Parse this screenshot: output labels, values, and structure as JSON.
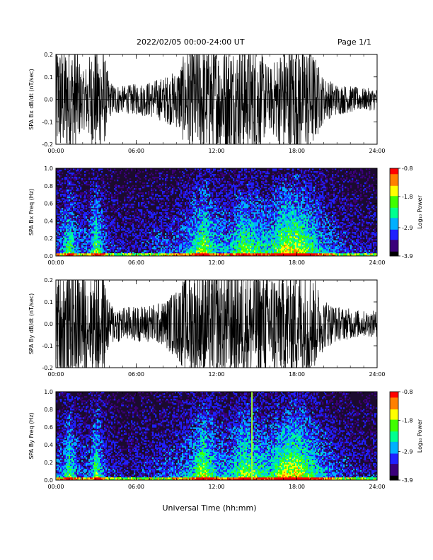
{
  "header": {
    "title": "2022/02/05  00:00-24:00 UT",
    "page": "Page 1/1"
  },
  "colors": {
    "trace": "#000000",
    "spectrogram_background": "#1b0b2e",
    "colormap": [
      "#000000",
      "#3a007a",
      "#2020ff",
      "#00b0ff",
      "#00ff90",
      "#40ff00",
      "#ffff00",
      "#ff8000",
      "#ff0000"
    ]
  },
  "chart_data": [
    {
      "id": "bx-waveform",
      "type": "line",
      "title": "",
      "ylabel": "SPA Bx dB/dt (nT/sec)",
      "xlabel": "",
      "xlim": [
        0,
        24
      ],
      "ylim": [
        -0.2,
        0.2
      ],
      "x_ticks": [
        "00:00",
        "06:00",
        "12:00",
        "18:00",
        "24:00"
      ],
      "y_ticks": [
        "-0.2",
        "-0.1",
        "0.0",
        "0.1",
        "0.2"
      ],
      "grid": false,
      "envelope": {
        "hours": [
          0,
          0.5,
          1,
          1.5,
          2,
          2.5,
          3,
          3.5,
          4,
          5,
          6,
          7,
          8,
          9,
          10,
          11,
          12,
          13,
          14,
          15,
          16,
          17,
          18,
          19,
          20,
          21,
          22,
          23,
          24
        ],
        "amplitude": [
          0.25,
          0.25,
          0.25,
          0.25,
          0.12,
          0.2,
          0.25,
          0.25,
          0.08,
          0.06,
          0.07,
          0.08,
          0.1,
          0.13,
          0.25,
          0.25,
          0.25,
          0.25,
          0.25,
          0.25,
          0.14,
          0.25,
          0.25,
          0.25,
          0.1,
          0.07,
          0.06,
          0.05,
          0.05
        ]
      }
    },
    {
      "id": "bx-spectrogram",
      "type": "heatmap",
      "title": "",
      "ylabel": "SPA Bx Freq (Hz)",
      "xlabel": "",
      "xlim": [
        0,
        24
      ],
      "ylim": [
        0,
        1.0
      ],
      "x_ticks": [
        "00:00",
        "06:00",
        "12:00",
        "18:00",
        "24:00"
      ],
      "y_ticks": [
        "0.0",
        "0.2",
        "0.4",
        "0.6",
        "0.8",
        "1.0"
      ],
      "colorbar": {
        "label": "Log₁₀ Power",
        "min": -3.9,
        "max": -0.8,
        "ticks": [
          "-0.8",
          "-1.8",
          "-2.9",
          "-3.9"
        ]
      },
      "activity": {
        "hours": [
          0,
          0.5,
          1,
          1.5,
          2,
          2.5,
          3,
          3.5,
          4,
          5,
          6,
          7,
          8,
          9,
          10,
          11,
          12,
          13,
          14,
          15,
          16,
          17,
          18,
          19,
          20,
          21,
          22,
          23,
          24
        ],
        "level": [
          0.35,
          0.4,
          0.7,
          0.4,
          0.3,
          0.35,
          0.75,
          0.4,
          0.25,
          0.2,
          0.2,
          0.25,
          0.3,
          0.35,
          0.45,
          0.8,
          0.5,
          0.45,
          0.75,
          0.6,
          0.55,
          0.85,
          0.85,
          0.65,
          0.45,
          0.3,
          0.25,
          0.2,
          0.2
        ]
      }
    },
    {
      "id": "by-waveform",
      "type": "line",
      "title": "",
      "ylabel": "SPA By dB/dt (nT/sec)",
      "xlabel": "",
      "xlim": [
        0,
        24
      ],
      "ylim": [
        -0.2,
        0.2
      ],
      "x_ticks": [
        "00:00",
        "06:00",
        "12:00",
        "18:00",
        "24:00"
      ],
      "y_ticks": [
        "-0.2",
        "-0.1",
        "0.0",
        "0.1",
        "0.2"
      ],
      "grid": false,
      "envelope": {
        "hours": [
          0,
          0.5,
          1,
          1.5,
          2,
          2.5,
          3,
          3.5,
          4,
          5,
          6,
          7,
          8,
          9,
          10,
          11,
          12,
          13,
          14,
          15,
          16,
          17,
          18,
          19,
          20,
          21,
          22,
          23,
          24
        ],
        "amplitude": [
          0.25,
          0.25,
          0.25,
          0.25,
          0.25,
          0.2,
          0.25,
          0.25,
          0.1,
          0.08,
          0.08,
          0.09,
          0.1,
          0.16,
          0.25,
          0.25,
          0.25,
          0.25,
          0.25,
          0.25,
          0.25,
          0.25,
          0.25,
          0.25,
          0.12,
          0.08,
          0.07,
          0.06,
          0.06
        ]
      }
    },
    {
      "id": "by-spectrogram",
      "type": "heatmap",
      "title": "",
      "ylabel": "SPA By Freq (Hz)",
      "xlabel": "Universal Time (hh:mm)",
      "xlim": [
        0,
        24
      ],
      "ylim": [
        0,
        1.0
      ],
      "x_ticks": [
        "00:00",
        "06:00",
        "12:00",
        "18:00",
        "24:00"
      ],
      "y_ticks": [
        "0.0",
        "0.2",
        "0.4",
        "0.6",
        "0.8",
        "1.0"
      ],
      "colorbar": {
        "label": "Log₁₀ Power",
        "min": -3.9,
        "max": -0.8,
        "ticks": [
          "-0.8",
          "-1.8",
          "-2.9",
          "-3.9"
        ]
      },
      "activity": {
        "hours": [
          0,
          0.5,
          1,
          1.5,
          2,
          2.5,
          3,
          3.5,
          4,
          5,
          6,
          7,
          8,
          9,
          10,
          11,
          12,
          13,
          14,
          15,
          16,
          17,
          18,
          19,
          20,
          21,
          22,
          23,
          24
        ],
        "level": [
          0.35,
          0.4,
          0.7,
          0.4,
          0.3,
          0.35,
          0.75,
          0.4,
          0.25,
          0.2,
          0.2,
          0.25,
          0.3,
          0.35,
          0.45,
          0.85,
          0.5,
          0.45,
          0.8,
          0.65,
          0.55,
          0.85,
          0.9,
          0.65,
          0.45,
          0.3,
          0.25,
          0.2,
          0.2
        ]
      },
      "vertical_line_hour": 14.65
    }
  ]
}
